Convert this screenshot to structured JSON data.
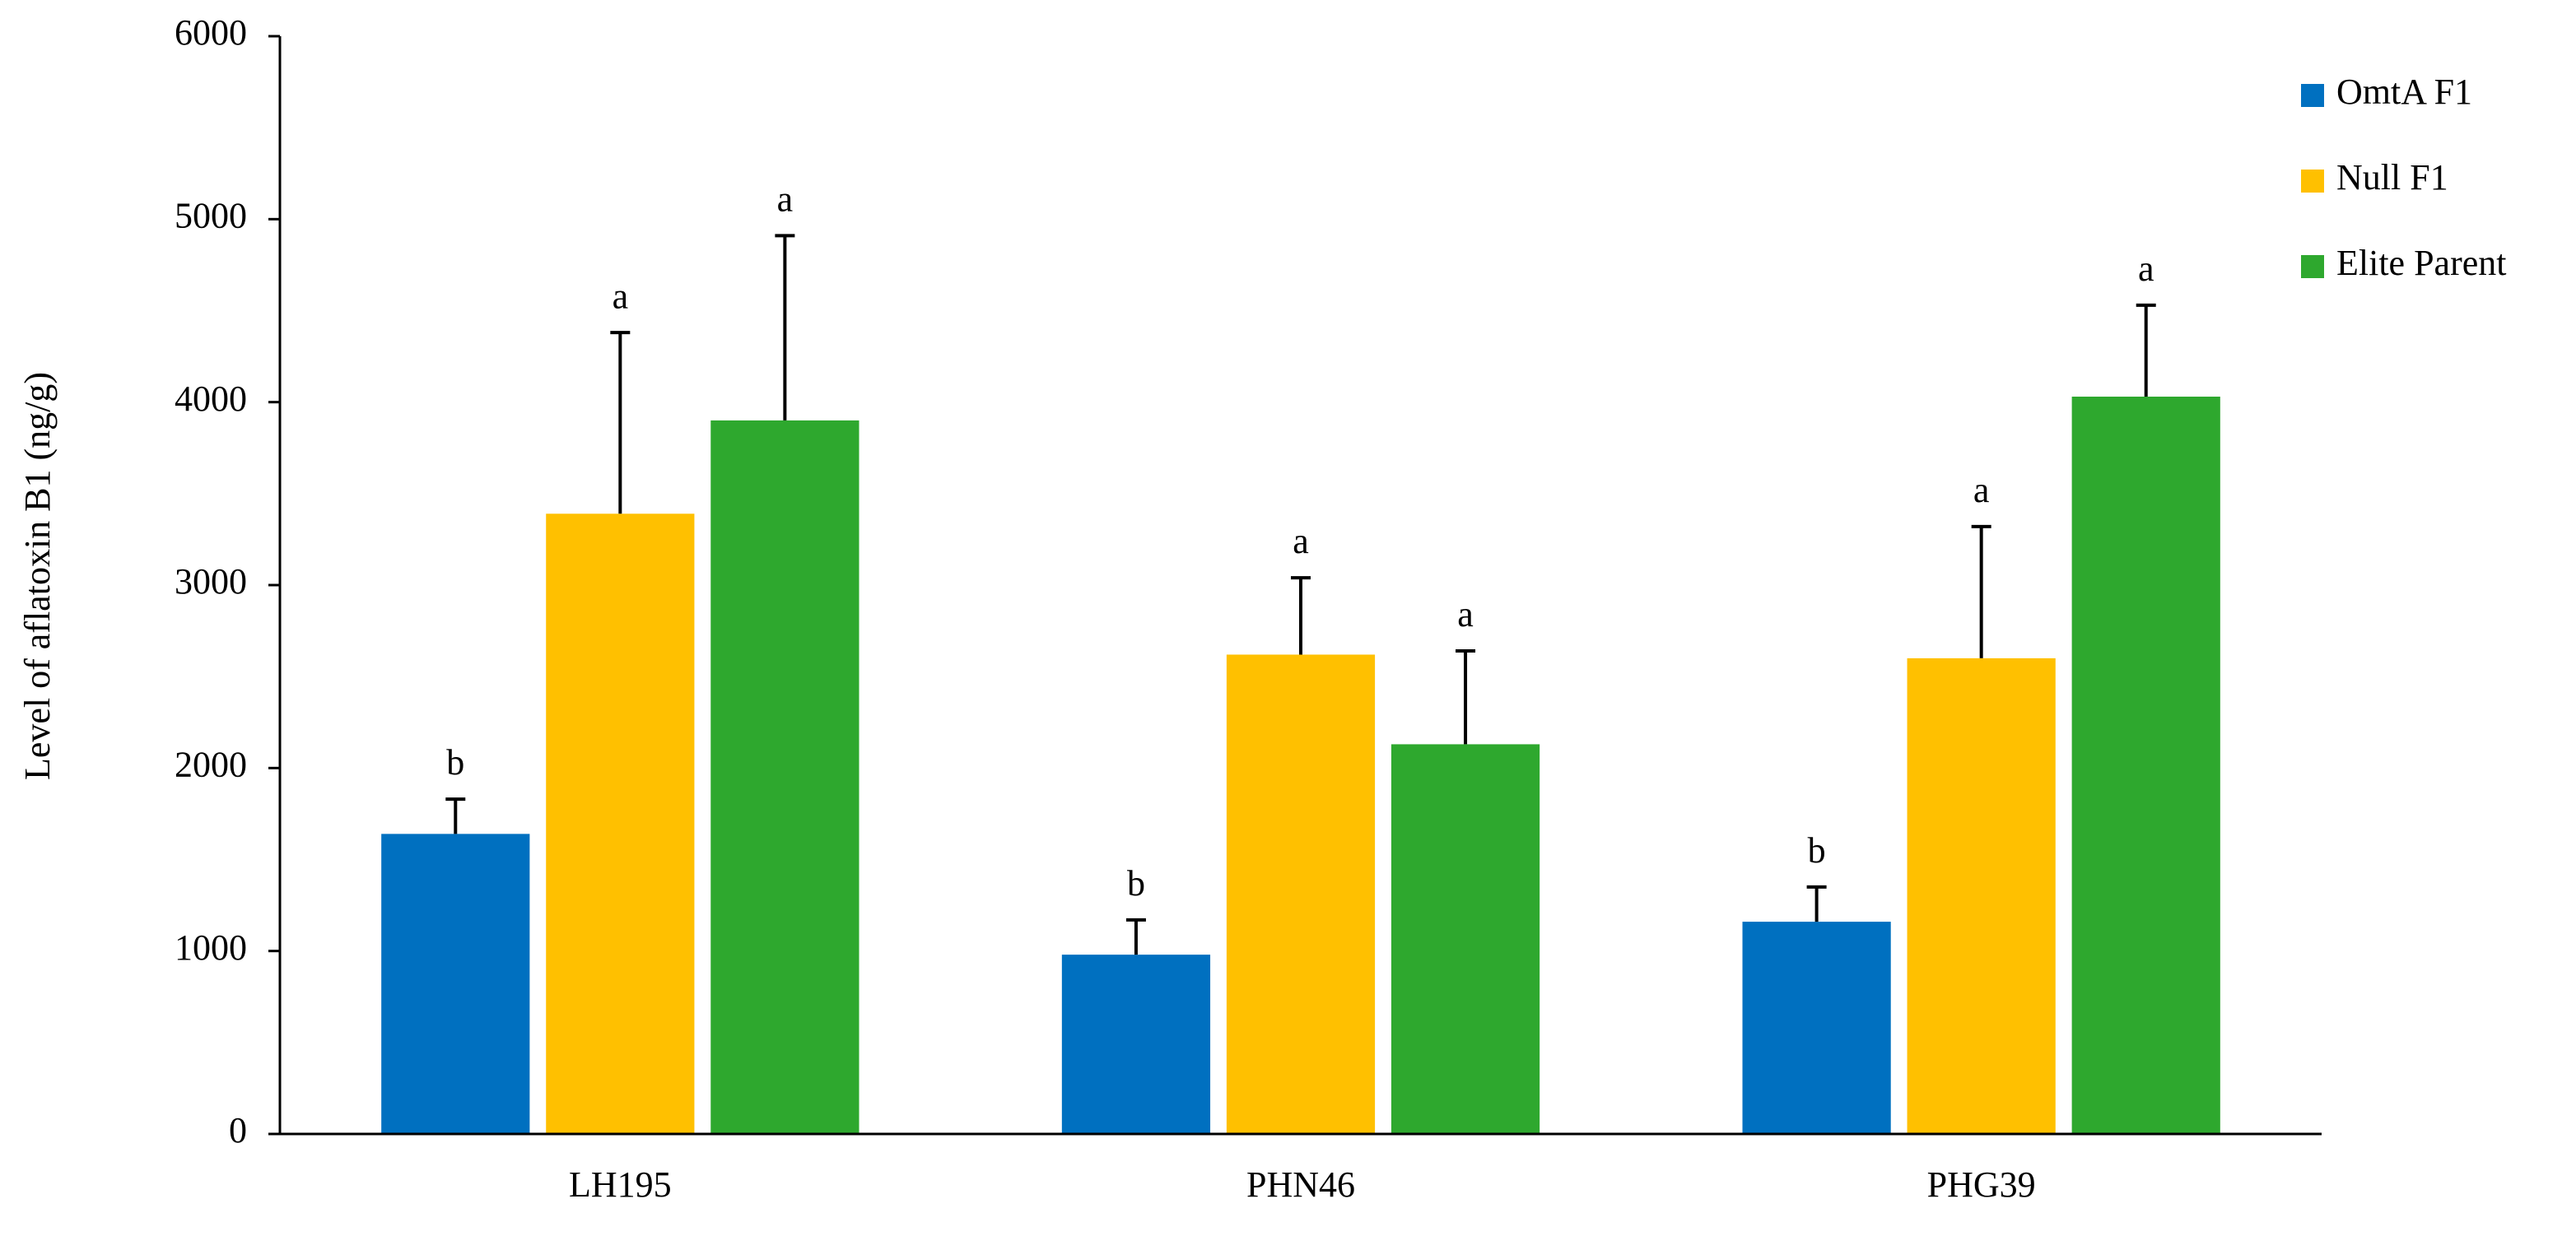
{
  "chart_data": {
    "type": "bar",
    "y_label": "Level of aflatoxin B1 (ng/g)",
    "categories": [
      "LH195",
      "PHN46",
      "PHG39"
    ],
    "series": [
      {
        "name": "OmtA F1",
        "color": "#0070c0",
        "values": [
          1640,
          980,
          1160
        ],
        "errors": [
          190,
          190,
          190
        ],
        "significance": [
          "b",
          "b",
          "b"
        ]
      },
      {
        "name": "Null F1",
        "color": "#ffc000",
        "values": [
          3390,
          2620,
          2600
        ],
        "errors": [
          990,
          420,
          720
        ],
        "significance": [
          "a",
          "a",
          "a"
        ]
      },
      {
        "name": "Elite Parent",
        "color": "#2ea82e",
        "values": [
          3900,
          2130,
          4030
        ],
        "errors": [
          1010,
          510,
          500
        ],
        "significance": [
          "a",
          "a",
          "a"
        ]
      }
    ],
    "ylim": [
      0,
      6000
    ],
    "yticks": [
      0,
      1000,
      2000,
      3000,
      4000,
      5000,
      6000
    ],
    "legend": "right"
  }
}
